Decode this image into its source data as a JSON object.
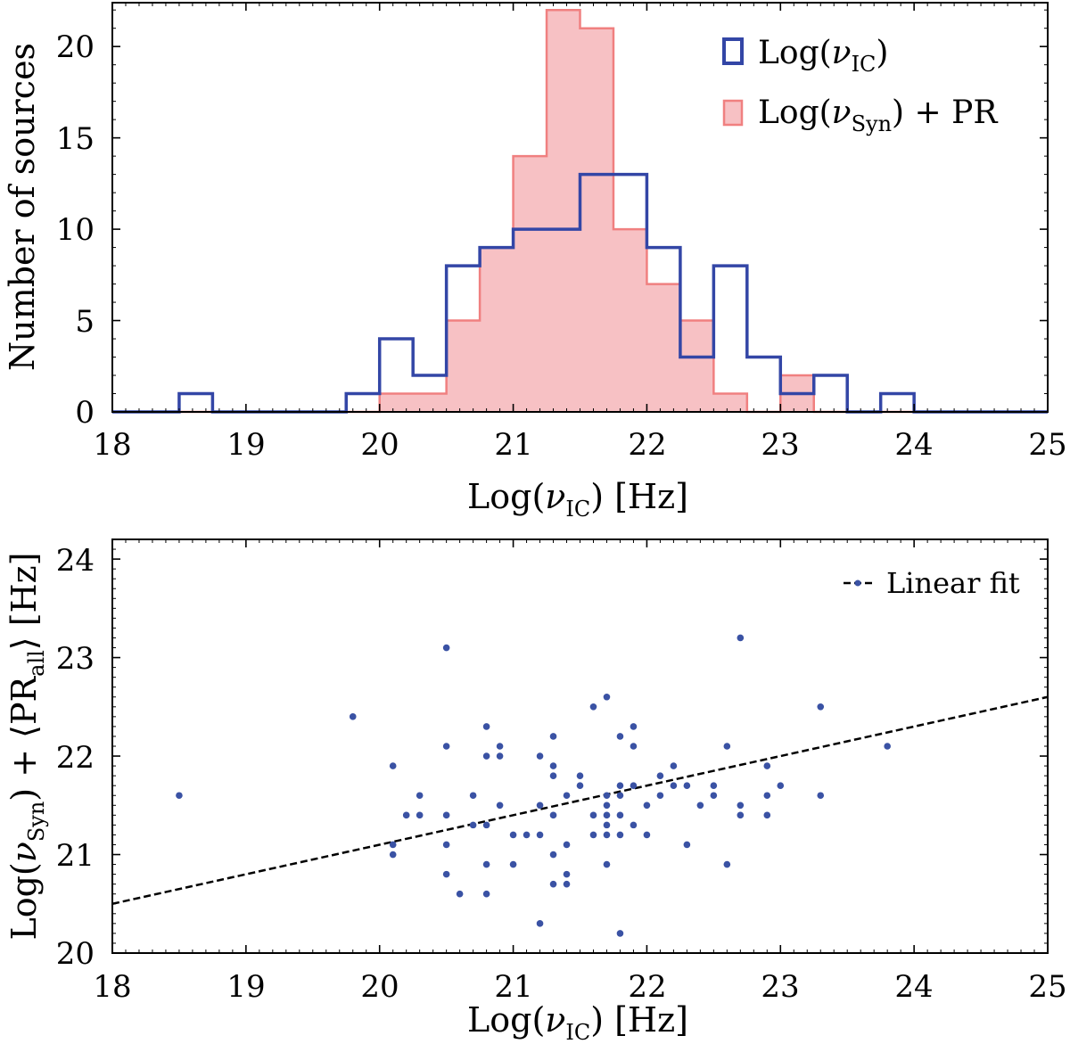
{
  "chart_data": [
    {
      "type": "histogram",
      "xlabel": "Log(νIC) [Hz]",
      "xlabel_main": "Log(",
      "xlabel_nu": "ν",
      "xlabel_sub": "IC",
      "xlabel_end": ") [Hz]",
      "ylabel": "Number of sources",
      "xlim": [
        18,
        25
      ],
      "ylim": [
        0,
        22.4
      ],
      "xticks": [
        "18",
        "19",
        "20",
        "21",
        "22",
        "23",
        "24",
        "25"
      ],
      "yticks": [
        "0",
        "5",
        "10",
        "15",
        "20"
      ],
      "bin_edges": [
        18.0,
        18.25,
        18.5,
        18.75,
        19.0,
        19.25,
        19.5,
        19.75,
        20.0,
        20.25,
        20.5,
        20.75,
        21.0,
        21.25,
        21.5,
        21.75,
        22.0,
        22.25,
        22.5,
        22.75,
        23.0,
        23.25,
        23.5,
        23.75,
        24.0,
        24.25,
        24.5,
        24.75,
        25.0
      ],
      "series": [
        {
          "name": "Log(νIC)",
          "legend_main": "Log(",
          "legend_nu": "ν",
          "legend_sub": "IC",
          "legend_end": ")",
          "style": "step",
          "color": "#3346a6",
          "counts": [
            0,
            0,
            1,
            0,
            0,
            0,
            0,
            1,
            4,
            2,
            8,
            9,
            10,
            10,
            13,
            13,
            9,
            3,
            8,
            3,
            1,
            2,
            0,
            1,
            0,
            0,
            0,
            0
          ]
        },
        {
          "name": "Log(νSyn) + PR",
          "legend_main": "Log(",
          "legend_nu": "ν",
          "legend_sub": "Syn",
          "legend_end": ") + PR",
          "style": "filled",
          "color": "#f08080",
          "fill": "#f7c1c4",
          "counts": [
            0,
            0,
            0,
            0,
            0,
            0,
            0,
            0,
            1,
            1,
            5,
            9,
            14,
            22,
            21,
            10,
            7,
            5,
            1,
            0,
            2,
            0,
            0,
            0,
            0,
            0,
            0,
            0
          ]
        }
      ]
    },
    {
      "type": "scatter",
      "xlabel": "Log(νIC) [Hz]",
      "xlabel_main": "Log(",
      "xlabel_nu": "ν",
      "xlabel_sub": "IC",
      "xlabel_end": ") [Hz]",
      "ylabel": "Log(νSyn) + ⟨PRall⟩ [Hz]",
      "ylabel_a": "Log(",
      "ylabel_nu": "ν",
      "ylabel_sub1": "Syn",
      "ylabel_b": ") + ⟨PR",
      "ylabel_sub2": "all",
      "ylabel_c": "⟩ [Hz]",
      "xlim": [
        18,
        25
      ],
      "ylim": [
        20,
        24.2
      ],
      "xticks": [
        "18",
        "19",
        "20",
        "21",
        "22",
        "23",
        "24",
        "25"
      ],
      "yticks": [
        "20",
        "21",
        "22",
        "23",
        "24"
      ],
      "point_color": "#3a52a4",
      "fit": {
        "label": "Linear fit",
        "slope": 0.3,
        "intercept": 15.1,
        "color": "#000000"
      },
      "points": [
        [
          18.5,
          21.6
        ],
        [
          19.8,
          22.4
        ],
        [
          20.1,
          21.9
        ],
        [
          20.1,
          21.1
        ],
        [
          20.1,
          21.0
        ],
        [
          20.2,
          21.4
        ],
        [
          20.3,
          21.6
        ],
        [
          20.3,
          21.4
        ],
        [
          20.5,
          23.1
        ],
        [
          20.5,
          22.1
        ],
        [
          20.5,
          21.4
        ],
        [
          20.5,
          21.1
        ],
        [
          20.5,
          20.8
        ],
        [
          20.6,
          20.6
        ],
        [
          20.7,
          21.6
        ],
        [
          20.7,
          21.3
        ],
        [
          20.8,
          22.3
        ],
        [
          20.8,
          22.0
        ],
        [
          20.8,
          21.3
        ],
        [
          20.8,
          20.9
        ],
        [
          20.8,
          20.6
        ],
        [
          20.9,
          22.1
        ],
        [
          20.9,
          22.0
        ],
        [
          20.9,
          21.5
        ],
        [
          21.0,
          21.2
        ],
        [
          21.0,
          20.9
        ],
        [
          21.1,
          21.2
        ],
        [
          21.2,
          22.0
        ],
        [
          21.2,
          21.5
        ],
        [
          21.2,
          21.2
        ],
        [
          21.2,
          20.3
        ],
        [
          21.3,
          22.2
        ],
        [
          21.3,
          21.9
        ],
        [
          21.3,
          21.8
        ],
        [
          21.3,
          21.4
        ],
        [
          21.3,
          21.0
        ],
        [
          21.3,
          20.7
        ],
        [
          21.4,
          21.6
        ],
        [
          21.4,
          21.1
        ],
        [
          21.4,
          20.8
        ],
        [
          21.4,
          20.7
        ],
        [
          21.5,
          21.8
        ],
        [
          21.5,
          21.7
        ],
        [
          21.6,
          22.5
        ],
        [
          21.6,
          21.4
        ],
        [
          21.6,
          21.2
        ],
        [
          21.7,
          22.6
        ],
        [
          21.7,
          21.6
        ],
        [
          21.7,
          21.5
        ],
        [
          21.7,
          21.4
        ],
        [
          21.7,
          21.3
        ],
        [
          21.7,
          21.2
        ],
        [
          21.7,
          20.9
        ],
        [
          21.8,
          22.2
        ],
        [
          21.8,
          21.7
        ],
        [
          21.8,
          21.6
        ],
        [
          21.8,
          21.4
        ],
        [
          21.8,
          21.2
        ],
        [
          21.8,
          20.2
        ],
        [
          21.9,
          22.3
        ],
        [
          21.9,
          22.1
        ],
        [
          21.9,
          21.7
        ],
        [
          21.9,
          21.3
        ],
        [
          22.0,
          21.5
        ],
        [
          22.0,
          21.2
        ],
        [
          22.1,
          21.8
        ],
        [
          22.1,
          21.6
        ],
        [
          22.2,
          21.9
        ],
        [
          22.2,
          21.7
        ],
        [
          22.3,
          21.7
        ],
        [
          22.3,
          21.1
        ],
        [
          22.4,
          21.5
        ],
        [
          22.5,
          21.7
        ],
        [
          22.5,
          21.6
        ],
        [
          22.6,
          22.1
        ],
        [
          22.6,
          20.9
        ],
        [
          22.7,
          23.2
        ],
        [
          22.7,
          21.5
        ],
        [
          22.7,
          21.4
        ],
        [
          22.9,
          21.9
        ],
        [
          22.9,
          21.6
        ],
        [
          22.9,
          21.4
        ],
        [
          23.0,
          21.7
        ],
        [
          23.3,
          22.5
        ],
        [
          23.3,
          21.6
        ],
        [
          23.8,
          22.1
        ]
      ]
    }
  ]
}
